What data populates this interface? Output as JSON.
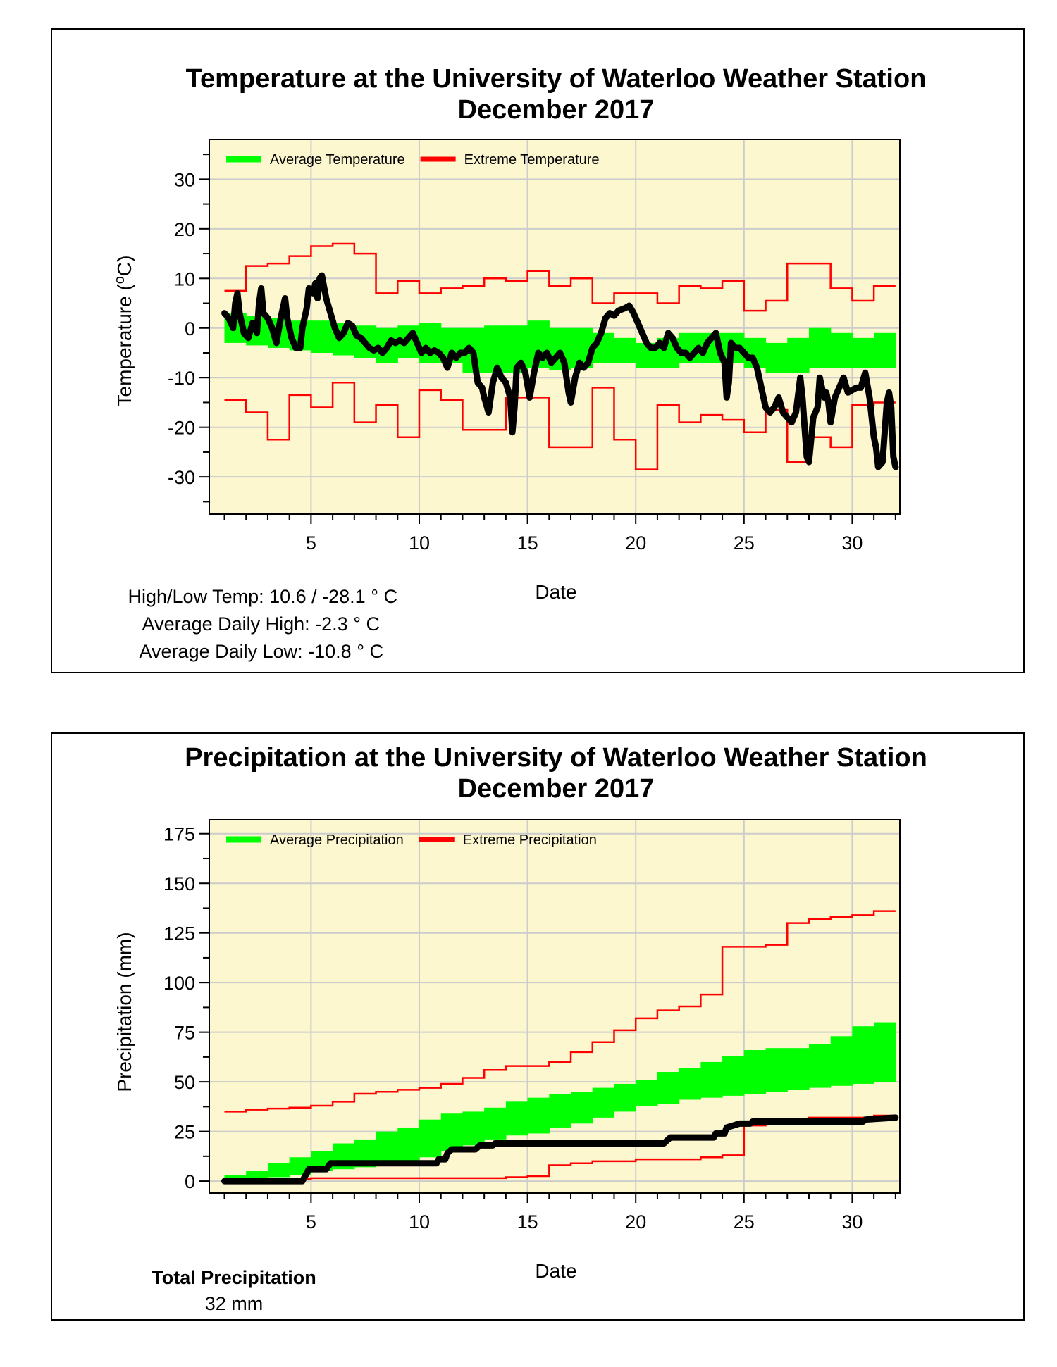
{
  "colors": {
    "plot_bg": "#fdf7cf",
    "average_band": "#00ff00",
    "extreme_line": "#ff0000",
    "observed_line": "#000000",
    "grid": "#cccccc"
  },
  "chart_data": [
    {
      "type": "line",
      "title": "Temperature at the University of Waterloo Weather Station",
      "subtitle": "December 2017",
      "xlabel": "Date",
      "ylabel": "Temperature (",
      "ylabel_sup": "o",
      "ylabel_end": "C)",
      "xlim": [
        0.3,
        32.2
      ],
      "ylim": [
        -37.5,
        38
      ],
      "xticks": [
        5,
        10,
        15,
        20,
        25,
        30
      ],
      "yticks": [
        30,
        20,
        10,
        0,
        -10,
        -20,
        -30
      ],
      "grid": true,
      "legend": {
        "position": "top-left",
        "entries": [
          "Average Temperature",
          "Extreme Temperature"
        ]
      },
      "stats": [
        "High/Low Temp:  10.6 / -28.1 ° C",
        "Average Daily High:  -2.3 ° C",
        "Average Daily Low:  -10.8 ° C"
      ],
      "days": [
        1,
        2,
        3,
        4,
        5,
        6,
        7,
        8,
        9,
        10,
        11,
        12,
        13,
        14,
        15,
        16,
        17,
        18,
        19,
        20,
        21,
        22,
        23,
        24,
        25,
        26,
        27,
        28,
        29,
        30,
        31
      ],
      "average_high": [
        3,
        2.5,
        2,
        1.5,
        1.5,
        1,
        0.5,
        0,
        0.5,
        1,
        0,
        0,
        0.5,
        0.5,
        1.5,
        0,
        0,
        -1,
        -2,
        -3,
        -2,
        -1,
        -1,
        -1,
        -2,
        -3,
        -2,
        0,
        -1,
        -2,
        -1
      ],
      "average_low": [
        -3,
        -3.5,
        -4,
        -4.5,
        -5,
        -5.5,
        -6,
        -7,
        -6,
        -7,
        -7,
        -9,
        -9,
        -9,
        -8,
        -8.5,
        -8,
        -7,
        -7,
        -8,
        -8,
        -7,
        -7,
        -7,
        -8,
        -9,
        -9,
        -8,
        -8,
        -8,
        -8
      ],
      "extreme_high": [
        7.5,
        12.5,
        13,
        14.5,
        16.5,
        17,
        15,
        7,
        9.5,
        7,
        8,
        8.5,
        10,
        9.5,
        11.5,
        8.5,
        10,
        5,
        7,
        7,
        5,
        8.5,
        8,
        9.5,
        3.5,
        5.5,
        13,
        13,
        8,
        5.5,
        8.5
      ],
      "extreme_low": [
        -14.5,
        -17,
        -22.5,
        -13.5,
        -16,
        -11,
        -19,
        -15.5,
        -22,
        -12.5,
        -14.5,
        -20.5,
        -20.5,
        -14,
        -14,
        -24,
        -24,
        -12,
        -22.5,
        -28.5,
        -15.5,
        -19,
        -17.5,
        -18.5,
        -21,
        -16.5,
        -27,
        -22,
        -24,
        -15.5,
        -15
      ],
      "observed": [
        [
          1.0,
          3
        ],
        [
          1.2,
          2
        ],
        [
          1.4,
          0
        ],
        [
          1.5,
          5
        ],
        [
          1.6,
          7
        ],
        [
          1.7,
          3
        ],
        [
          1.9,
          -1
        ],
        [
          2.1,
          -2
        ],
        [
          2.3,
          1
        ],
        [
          2.5,
          -1
        ],
        [
          2.6,
          5
        ],
        [
          2.7,
          8
        ],
        [
          2.8,
          3
        ],
        [
          3.0,
          2
        ],
        [
          3.2,
          0
        ],
        [
          3.4,
          -3
        ],
        [
          3.6,
          2
        ],
        [
          3.8,
          6
        ],
        [
          3.9,
          2
        ],
        [
          4.1,
          -2
        ],
        [
          4.3,
          -4
        ],
        [
          4.5,
          -4
        ],
        [
          4.6,
          0
        ],
        [
          4.8,
          4
        ],
        [
          4.9,
          8
        ],
        [
          5.1,
          7
        ],
        [
          5.2,
          9
        ],
        [
          5.3,
          6
        ],
        [
          5.4,
          10
        ],
        [
          5.5,
          10.6
        ],
        [
          5.7,
          6
        ],
        [
          5.9,
          3
        ],
        [
          6.1,
          0
        ],
        [
          6.3,
          -2
        ],
        [
          6.5,
          -1
        ],
        [
          6.7,
          1
        ],
        [
          6.9,
          0.5
        ],
        [
          7.1,
          -1.5
        ],
        [
          7.3,
          -2
        ],
        [
          7.5,
          -3
        ],
        [
          7.7,
          -4
        ],
        [
          7.9,
          -4.5
        ],
        [
          8.1,
          -4
        ],
        [
          8.3,
          -5
        ],
        [
          8.5,
          -4
        ],
        [
          8.7,
          -2.5
        ],
        [
          8.9,
          -3
        ],
        [
          9.1,
          -2.5
        ],
        [
          9.3,
          -3
        ],
        [
          9.5,
          -2
        ],
        [
          9.7,
          -1
        ],
        [
          9.9,
          -3
        ],
        [
          10.1,
          -5
        ],
        [
          10.3,
          -4
        ],
        [
          10.5,
          -5
        ],
        [
          10.7,
          -4.5
        ],
        [
          10.9,
          -5
        ],
        [
          11.1,
          -6
        ],
        [
          11.3,
          -8
        ],
        [
          11.5,
          -5
        ],
        [
          11.7,
          -6
        ],
        [
          11.9,
          -5
        ],
        [
          12.1,
          -5
        ],
        [
          12.3,
          -4
        ],
        [
          12.5,
          -5
        ],
        [
          12.7,
          -11
        ],
        [
          12.9,
          -12
        ],
        [
          13.0,
          -14
        ],
        [
          13.2,
          -17
        ],
        [
          13.4,
          -11
        ],
        [
          13.6,
          -8
        ],
        [
          13.8,
          -10
        ],
        [
          14.0,
          -11
        ],
        [
          14.2,
          -14
        ],
        [
          14.3,
          -21
        ],
        [
          14.4,
          -16
        ],
        [
          14.5,
          -8
        ],
        [
          14.7,
          -7
        ],
        [
          14.9,
          -9
        ],
        [
          15.1,
          -14
        ],
        [
          15.3,
          -9
        ],
        [
          15.5,
          -5
        ],
        [
          15.7,
          -6
        ],
        [
          15.9,
          -5
        ],
        [
          16.1,
          -7
        ],
        [
          16.3,
          -6
        ],
        [
          16.5,
          -5
        ],
        [
          16.7,
          -7
        ],
        [
          16.9,
          -13
        ],
        [
          17.0,
          -15
        ],
        [
          17.2,
          -10
        ],
        [
          17.4,
          -7
        ],
        [
          17.6,
          -8
        ],
        [
          17.8,
          -7
        ],
        [
          18.0,
          -4
        ],
        [
          18.2,
          -3
        ],
        [
          18.4,
          -1
        ],
        [
          18.6,
          2
        ],
        [
          18.8,
          3
        ],
        [
          19.0,
          2.5
        ],
        [
          19.2,
          3.5
        ],
        [
          19.5,
          4
        ],
        [
          19.7,
          4.5
        ],
        [
          19.9,
          3
        ],
        [
          20.1,
          1
        ],
        [
          20.3,
          -1
        ],
        [
          20.5,
          -3
        ],
        [
          20.7,
          -4
        ],
        [
          20.9,
          -4
        ],
        [
          21.1,
          -3
        ],
        [
          21.3,
          -4
        ],
        [
          21.5,
          -1
        ],
        [
          21.7,
          -2
        ],
        [
          21.9,
          -4
        ],
        [
          22.1,
          -5
        ],
        [
          22.3,
          -5
        ],
        [
          22.5,
          -6
        ],
        [
          22.7,
          -5
        ],
        [
          22.9,
          -4
        ],
        [
          23.1,
          -5
        ],
        [
          23.3,
          -3
        ],
        [
          23.5,
          -2
        ],
        [
          23.7,
          -1
        ],
        [
          23.9,
          -5
        ],
        [
          24.1,
          -7
        ],
        [
          24.2,
          -14
        ],
        [
          24.3,
          -11
        ],
        [
          24.4,
          -3
        ],
        [
          24.6,
          -4
        ],
        [
          24.8,
          -4
        ],
        [
          25.0,
          -5
        ],
        [
          25.2,
          -6
        ],
        [
          25.4,
          -6
        ],
        [
          25.6,
          -8
        ],
        [
          25.8,
          -12
        ],
        [
          26.0,
          -16
        ],
        [
          26.2,
          -17
        ],
        [
          26.4,
          -16
        ],
        [
          26.6,
          -14
        ],
        [
          26.8,
          -17
        ],
        [
          27.0,
          -18
        ],
        [
          27.2,
          -19
        ],
        [
          27.4,
          -17
        ],
        [
          27.6,
          -10
        ],
        [
          27.7,
          -14
        ],
        [
          27.8,
          -20
        ],
        [
          27.9,
          -26
        ],
        [
          28.0,
          -27
        ],
        [
          28.2,
          -18
        ],
        [
          28.4,
          -16
        ],
        [
          28.5,
          -10
        ],
        [
          28.7,
          -14
        ],
        [
          28.8,
          -13
        ],
        [
          28.9,
          -15
        ],
        [
          29.0,
          -19
        ],
        [
          29.2,
          -14
        ],
        [
          29.4,
          -12
        ],
        [
          29.6,
          -10
        ],
        [
          29.8,
          -13
        ],
        [
          30.0,
          -12.5
        ],
        [
          30.2,
          -12
        ],
        [
          30.4,
          -12
        ],
        [
          30.6,
          -9
        ],
        [
          30.8,
          -14
        ],
        [
          31.0,
          -22
        ],
        [
          31.1,
          -24
        ],
        [
          31.2,
          -28
        ],
        [
          31.4,
          -27
        ],
        [
          31.6,
          -15
        ],
        [
          31.7,
          -13
        ],
        [
          31.8,
          -16
        ],
        [
          31.9,
          -26
        ],
        [
          32.0,
          -28
        ]
      ]
    },
    {
      "type": "line",
      "title": "Precipitation at the University of Waterloo Weather Station",
      "subtitle": "December 2017",
      "xlabel": "Date",
      "ylabel": "Precipitation (mm)",
      "xlim": [
        0.3,
        32.2
      ],
      "ylim": [
        -6,
        182
      ],
      "xticks": [
        5,
        10,
        15,
        20,
        25,
        30
      ],
      "yticks": [
        175,
        150,
        125,
        100,
        75,
        50,
        25,
        0
      ],
      "grid": true,
      "legend": {
        "position": "top-left",
        "entries": [
          "Average Precipitation",
          "Extreme Precipitation"
        ]
      },
      "stats_title": "Total Precipitation",
      "stats_value": "32 mm",
      "days": [
        1,
        2,
        3,
        4,
        5,
        6,
        7,
        8,
        9,
        10,
        11,
        12,
        13,
        14,
        15,
        16,
        17,
        18,
        19,
        20,
        21,
        22,
        23,
        24,
        25,
        26,
        27,
        28,
        29,
        30,
        31
      ],
      "average_high": [
        3,
        5,
        9,
        12,
        15,
        19,
        21,
        25,
        27,
        31,
        34,
        35,
        37,
        40,
        42,
        44,
        45,
        47,
        49,
        51,
        55,
        57,
        60,
        63,
        66,
        67,
        67,
        69,
        73,
        78,
        80
      ],
      "average_low": [
        0,
        1,
        2,
        3,
        5,
        6,
        7,
        9,
        10,
        12,
        15,
        18,
        21,
        23,
        24,
        27,
        29,
        32,
        35,
        38,
        39,
        41,
        42,
        43,
        44,
        45,
        46,
        47,
        48,
        49,
        50
      ],
      "extreme_high": [
        35,
        36,
        36.5,
        37,
        38,
        40,
        44,
        45,
        46,
        47,
        49,
        52,
        56,
        58,
        58,
        60,
        65,
        70,
        76,
        82,
        86,
        88,
        94,
        118,
        118,
        119,
        130,
        132,
        133,
        134,
        136
      ],
      "extreme_low": [
        0,
        0.5,
        0.5,
        1,
        1.5,
        1.5,
        1.5,
        1.5,
        1.5,
        1.5,
        1.5,
        1.5,
        1.5,
        2,
        2.5,
        8,
        9,
        10,
        10,
        11,
        11,
        11,
        12,
        13,
        28,
        30,
        31,
        32,
        32,
        32,
        33
      ],
      "observed": [
        [
          1.0,
          0
        ],
        [
          4.6,
          0
        ],
        [
          4.7,
          2
        ],
        [
          4.9,
          6
        ],
        [
          5.7,
          6
        ],
        [
          5.9,
          9
        ],
        [
          10.8,
          9
        ],
        [
          10.9,
          11
        ],
        [
          11.2,
          11
        ],
        [
          11.3,
          14
        ],
        [
          11.5,
          16
        ],
        [
          12.6,
          16
        ],
        [
          12.8,
          18
        ],
        [
          13.4,
          18
        ],
        [
          13.5,
          19
        ],
        [
          21.3,
          19
        ],
        [
          21.4,
          20
        ],
        [
          21.6,
          22
        ],
        [
          23.6,
          22
        ],
        [
          23.7,
          24
        ],
        [
          24.1,
          24
        ],
        [
          24.2,
          27
        ],
        [
          24.5,
          28
        ],
        [
          24.8,
          29
        ],
        [
          25.3,
          29
        ],
        [
          25.4,
          30
        ],
        [
          30.5,
          30
        ],
        [
          30.6,
          31
        ],
        [
          32.0,
          32
        ]
      ]
    }
  ]
}
